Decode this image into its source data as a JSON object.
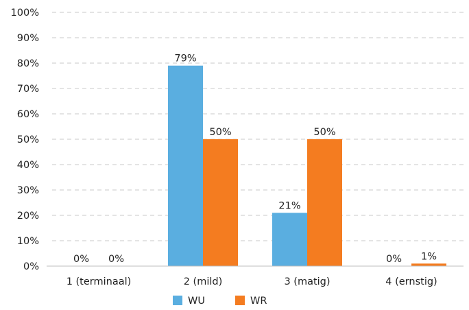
{
  "chart_data": {
    "type": "bar",
    "categories": [
      "1 (terminaal)",
      "2 (mild)",
      "3 (matig)",
      "4 (ernstig)"
    ],
    "series": [
      {
        "name": "WU",
        "values": [
          0,
          79,
          21,
          0
        ],
        "labels": [
          "0%",
          "79%",
          "21%",
          "0%"
        ],
        "color": "#5aaee0"
      },
      {
        "name": "WR",
        "values": [
          0,
          50,
          50,
          1
        ],
        "labels": [
          "0%",
          "50%",
          "50%",
          "1%"
        ],
        "color": "#f47c20"
      }
    ],
    "y_ticks": [
      "0%",
      "10%",
      "20%",
      "30%",
      "40%",
      "50%",
      "60%",
      "70%",
      "80%",
      "90%",
      "100%"
    ],
    "ylim": [
      0,
      100
    ],
    "grid": true,
    "legend_position": "bottom-center",
    "title": "",
    "xlabel": "",
    "ylabel": ""
  }
}
